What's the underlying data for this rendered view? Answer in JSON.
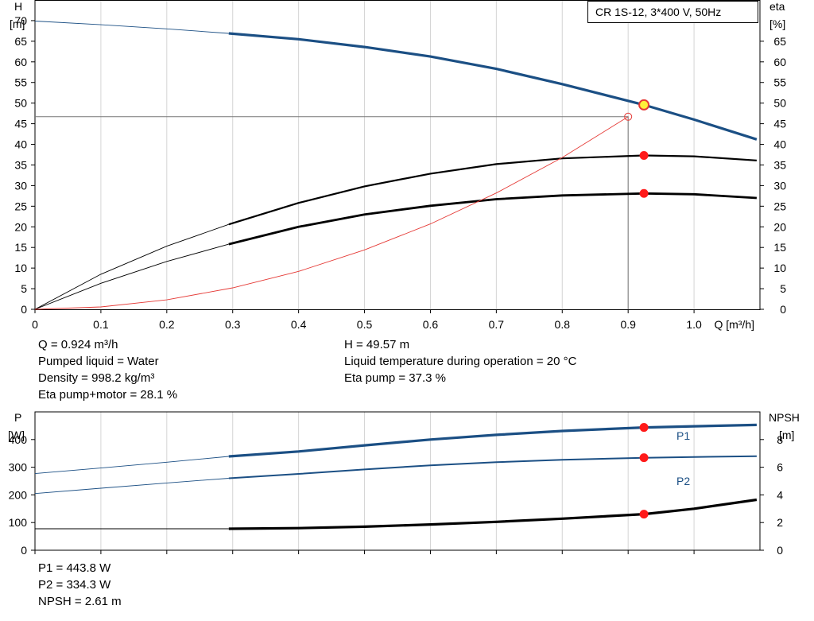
{
  "chart_data": [
    {
      "type": "line",
      "title": "CR 1S-12, 3*400 V, 50Hz",
      "xlabel": "Q [m³/h]",
      "ylabel_left": [
        "H",
        "[m]"
      ],
      "ylabel_right": [
        "eta",
        "[%]"
      ],
      "xlim": [
        0,
        1.1
      ],
      "ylim": [
        0,
        75
      ],
      "x_ticks": [
        0,
        0.1,
        0.2,
        0.3,
        0.4,
        0.5,
        0.6,
        0.7,
        0.8,
        0.9,
        1.0
      ],
      "x_tick_labels": [
        "0",
        "0.1",
        "0.2",
        "0.3",
        "0.4",
        "0.5",
        "0.6",
        "0.7",
        "0.8",
        "0.9",
        "1.0"
      ],
      "y_left_ticks": [
        0,
        5,
        10,
        15,
        20,
        25,
        30,
        35,
        40,
        45,
        50,
        55,
        60,
        65,
        70
      ],
      "y_right_ticks": [
        0,
        5,
        10,
        15,
        20,
        25,
        30,
        35,
        40,
        45,
        50,
        55,
        60,
        65
      ],
      "grid": true,
      "series": [
        {
          "key": "head",
          "color": "#1b4f84",
          "x": [
            0,
            0.1,
            0.2,
            0.294,
            0.4,
            0.5,
            0.6,
            0.7,
            0.8,
            0.924,
            1.0,
            1.095
          ],
          "values": [
            69.9,
            69.0,
            68.0,
            66.9,
            65.5,
            63.6,
            61.3,
            58.3,
            54.6,
            49.57,
            46.0,
            41.2
          ],
          "solid_from": 0.294
        },
        {
          "key": "eta-pump",
          "color": "#000000",
          "x": [
            0,
            0.1,
            0.2,
            0.294,
            0.4,
            0.5,
            0.6,
            0.7,
            0.8,
            0.924,
            1.0,
            1.095
          ],
          "values": [
            0,
            8.5,
            15.3,
            20.6,
            25.8,
            29.8,
            32.9,
            35.2,
            36.6,
            37.3,
            37.1,
            36.1
          ],
          "solid_from": 0.294
        },
        {
          "key": "eta-pump-motor",
          "color": "#000000",
          "x": [
            0,
            0.1,
            0.2,
            0.294,
            0.4,
            0.5,
            0.6,
            0.7,
            0.8,
            0.924,
            1.0,
            1.095
          ],
          "values": [
            0,
            6.3,
            11.6,
            15.8,
            20.0,
            23.0,
            25.1,
            26.7,
            27.6,
            28.1,
            27.9,
            27.0
          ],
          "solid_from": 0.294
        },
        {
          "key": "system-curve",
          "color": "#e53935",
          "x": [
            0,
            0.1,
            0.2,
            0.3,
            0.4,
            0.5,
            0.6,
            0.7,
            0.8,
            0.9
          ],
          "values": [
            0,
            0.58,
            2.3,
            5.2,
            9.2,
            14.4,
            20.7,
            28.2,
            36.8,
            46.7
          ]
        }
      ],
      "operating_point": {
        "x": 0.924,
        "head": 49.57,
        "eta_pump": 37.3,
        "eta_pump_motor": 28.1,
        "system_marker": {
          "x": 0.9,
          "y": 46.7
        }
      }
    },
    {
      "type": "line",
      "xlim": [
        0,
        1.1
      ],
      "ylabel_left": [
        "P",
        "[W]"
      ],
      "ylabel_right": [
        "NPSH",
        "[m]"
      ],
      "ylim": [
        0,
        500
      ],
      "y_left_ticks": [
        0,
        100,
        200,
        300,
        400
      ],
      "y_right_ticks": [
        0,
        2,
        4,
        6,
        8
      ],
      "y_right_lim": [
        0,
        10
      ],
      "grid": true,
      "series": [
        {
          "key": "p1",
          "name": "P1",
          "color": "#1b4f84",
          "x": [
            0,
            0.1,
            0.2,
            0.294,
            0.4,
            0.5,
            0.6,
            0.7,
            0.8,
            0.924,
            1.0,
            1.095
          ],
          "values": [
            277,
            297,
            318,
            339,
            357,
            379,
            400,
            417,
            431,
            443.8,
            448,
            453
          ],
          "solid_from": 0.294
        },
        {
          "key": "p2",
          "name": "P2",
          "color": "#1b4f84",
          "x": [
            0,
            0.1,
            0.2,
            0.294,
            0.4,
            0.5,
            0.6,
            0.7,
            0.8,
            0.924,
            1.0,
            1.095
          ],
          "values": [
            205,
            224,
            243,
            260,
            276,
            292,
            307,
            318,
            327,
            334.3,
            337,
            340
          ],
          "solid_from": 0.294
        },
        {
          "key": "npsh",
          "color": "#000000",
          "axis": "right",
          "x": [
            0,
            0.294,
            0.4,
            0.5,
            0.6,
            0.7,
            0.8,
            0.924,
            1.0,
            1.095
          ],
          "values": [
            1.55,
            1.55,
            1.6,
            1.7,
            1.86,
            2.05,
            2.28,
            2.61,
            3.0,
            3.65
          ],
          "solid_from": 0.294
        }
      ],
      "operating_point": {
        "x": 0.924,
        "p1": 443.8,
        "p2": 334.3,
        "npsh": 2.61
      }
    }
  ],
  "info_top_left": [
    "Q = 0.924 m³/h",
    "Pumped liquid = Water",
    "Density = 998.2 kg/m³",
    "Eta pump+motor = 28.1 %"
  ],
  "info_top_right": [
    "H = 49.57 m",
    "Liquid temperature during operation = 20 °C",
    "Eta pump = 37.3 %"
  ],
  "info_bottom": [
    "P1 = 443.8 W",
    "P2 = 334.3 W",
    "NPSH = 2.61 m"
  ]
}
